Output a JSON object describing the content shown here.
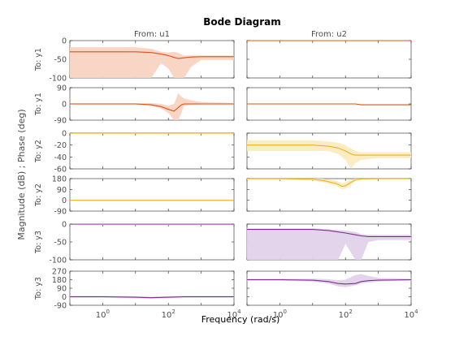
{
  "chart_data": {
    "type": "line",
    "title": "Bode Diagram",
    "xlabel": "Frequency  (rad/s)",
    "ylabel": "Magnitude (dB) ; Phase (deg)",
    "x_scale": "log",
    "xlim": [
      0.1,
      10000
    ],
    "x_tick_labels": [
      "10^0",
      "10^2",
      "10^4"
    ],
    "grid": false,
    "colors": {
      "y1": "#d95319",
      "y1_fill": "#f8d3c2",
      "y2": "#edb120",
      "y2_fill": "#fbecc0",
      "y3": "#7e2f8e",
      "y3_fill": "#e3d2ea"
    },
    "columns": [
      "From: u1",
      "From: u2"
    ],
    "rows": [
      {
        "label": "To: y1",
        "kind": "magnitude",
        "ylim": [
          -100,
          0
        ],
        "ticks": [
          "0",
          "-50",
          "-100"
        ],
        "color": "y1"
      },
      {
        "label": "To: y1",
        "kind": "phase",
        "ylim": [
          -90,
          90
        ],
        "ticks": [
          "90",
          "0",
          "-90"
        ],
        "color": "y1"
      },
      {
        "label": "To: y2",
        "kind": "magnitude",
        "ylim": [
          -60,
          0
        ],
        "ticks": [
          "0",
          "-20",
          "-40",
          "-60"
        ],
        "color": "y2"
      },
      {
        "label": "To: y2",
        "kind": "phase",
        "ylim": [
          -90,
          180
        ],
        "ticks": [
          "180",
          "90",
          "0",
          "-90"
        ],
        "color": "y2"
      },
      {
        "label": "To: y3",
        "kind": "magnitude",
        "ylim": [
          -100,
          0
        ],
        "ticks": [
          "0",
          "-50",
          "-100"
        ],
        "color": "y3"
      },
      {
        "label": "To: y3",
        "kind": "phase",
        "ylim": [
          -90,
          270
        ],
        "ticks": [
          "270",
          "180",
          "90",
          "0",
          "-90"
        ],
        "color": "y3"
      }
    ],
    "series": [
      {
        "row": 0,
        "col": 0,
        "x": [
          0.1,
          1,
          10,
          30,
          60,
          100,
          150,
          200,
          300,
          500,
          1000,
          10000
        ],
        "y": [
          -30,
          -30,
          -30,
          -32,
          -36,
          -40,
          -45,
          -48,
          -46,
          -44,
          -43,
          -43
        ],
        "y_lower": [
          -100,
          -100,
          -100,
          -100,
          -60,
          -75,
          -100,
          -100,
          -100,
          -70,
          -52,
          -52
        ],
        "y_upper": [
          -18,
          -18,
          -18,
          -22,
          -30,
          -32,
          -30,
          -33,
          -40,
          -40,
          -40,
          -40
        ]
      },
      {
        "row": 0,
        "col": 1,
        "x": [
          0.1,
          10000
        ],
        "y": [
          0,
          0
        ],
        "y_lower": [
          -1,
          -1
        ],
        "y_upper": [
          1,
          1
        ]
      },
      {
        "row": 1,
        "col": 0,
        "x": [
          0.1,
          1,
          10,
          30,
          60,
          100,
          150,
          200,
          250,
          300,
          500,
          1000,
          10000
        ],
        "y": [
          0,
          0,
          0,
          -5,
          -15,
          -30,
          -40,
          -20,
          -5,
          0,
          0,
          0,
          0
        ],
        "y_lower": [
          -3,
          -3,
          -3,
          -10,
          -25,
          -50,
          -90,
          -90,
          -50,
          -10,
          -5,
          -3,
          -3
        ],
        "y_upper": [
          3,
          3,
          3,
          5,
          0,
          -10,
          0,
          60,
          40,
          30,
          20,
          10,
          5
        ]
      },
      {
        "row": 1,
        "col": 1,
        "x": [
          0.1,
          100,
          200,
          300,
          10000
        ],
        "y": [
          0,
          0,
          0,
          -5,
          -5
        ],
        "y_lower": [
          -1,
          -1,
          -1,
          -6,
          -6
        ],
        "y_upper": [
          1,
          1,
          1,
          -4,
          -4
        ]
      },
      {
        "row": 2,
        "col": 0,
        "x": [
          0.1,
          10000
        ],
        "y": [
          0,
          0
        ],
        "y_lower": [
          -1,
          -1
        ],
        "y_upper": [
          1,
          1
        ]
      },
      {
        "row": 2,
        "col": 1,
        "x": [
          0.1,
          1,
          10,
          30,
          60,
          100,
          150,
          200,
          300,
          1000,
          10000
        ],
        "y": [
          -20,
          -20,
          -20,
          -22,
          -25,
          -30,
          -35,
          -37,
          -37,
          -37,
          -37
        ],
        "y_lower": [
          -30,
          -30,
          -30,
          -30,
          -35,
          -45,
          -60,
          -50,
          -45,
          -42,
          -42
        ],
        "y_upper": [
          -12,
          -12,
          -12,
          -14,
          -16,
          -20,
          -26,
          -30,
          -32,
          -32,
          -32
        ]
      },
      {
        "row": 3,
        "col": 0,
        "x": [
          0.1,
          10000
        ],
        "y": [
          0,
          0
        ],
        "y_lower": [
          -2,
          -2
        ],
        "y_upper": [
          2,
          2
        ]
      },
      {
        "row": 3,
        "col": 1,
        "x": [
          0.1,
          1,
          10,
          20,
          50,
          80,
          100,
          150,
          200,
          300,
          1000,
          10000
        ],
        "y": [
          180,
          180,
          175,
          165,
          140,
          115,
          120,
          150,
          170,
          178,
          180,
          180
        ],
        "y_lower": [
          170,
          170,
          165,
          150,
          120,
          90,
          100,
          130,
          160,
          170,
          175,
          175
        ],
        "y_upper": [
          185,
          185,
          185,
          180,
          165,
          140,
          150,
          175,
          185,
          185,
          185,
          185
        ]
      },
      {
        "row": 4,
        "col": 0,
        "x": [
          0.1,
          10000
        ],
        "y": [
          0,
          0
        ],
        "y_lower": [
          -3,
          -3
        ],
        "y_upper": [
          3,
          3
        ]
      },
      {
        "row": 4,
        "col": 1,
        "x": [
          0.1,
          1,
          10,
          30,
          60,
          100,
          200,
          300,
          500,
          1000,
          10000
        ],
        "y": [
          -15,
          -15,
          -15,
          -18,
          -22,
          -25,
          -30,
          -33,
          -35,
          -35,
          -35
        ],
        "y_lower": [
          -100,
          -100,
          -100,
          -100,
          -100,
          -55,
          -100,
          -100,
          -50,
          -45,
          -45
        ],
        "y_upper": [
          -12,
          -12,
          -12,
          -14,
          -17,
          -18,
          -22,
          -28,
          -30,
          -30,
          -30
        ]
      },
      {
        "row": 5,
        "col": 0,
        "x": [
          0.1,
          1,
          10,
          30,
          100,
          300,
          1000,
          10000
        ],
        "y": [
          0,
          0,
          -5,
          -10,
          -5,
          0,
          0,
          0
        ],
        "y_lower": [
          -10,
          -10,
          -15,
          -20,
          -15,
          -10,
          -10,
          -10
        ],
        "y_upper": [
          10,
          10,
          5,
          0,
          5,
          10,
          10,
          10
        ]
      },
      {
        "row": 5,
        "col": 1,
        "x": [
          0.1,
          1,
          10,
          30,
          60,
          100,
          200,
          300,
          500,
          1000,
          10000
        ],
        "y": [
          180,
          180,
          175,
          160,
          140,
          135,
          140,
          160,
          170,
          175,
          180
        ],
        "y_lower": [
          170,
          170,
          160,
          140,
          110,
          100,
          120,
          140,
          150,
          160,
          170
        ],
        "y_upper": [
          190,
          190,
          190,
          185,
          175,
          180,
          230,
          240,
          220,
          200,
          190
        ]
      }
    ]
  }
}
